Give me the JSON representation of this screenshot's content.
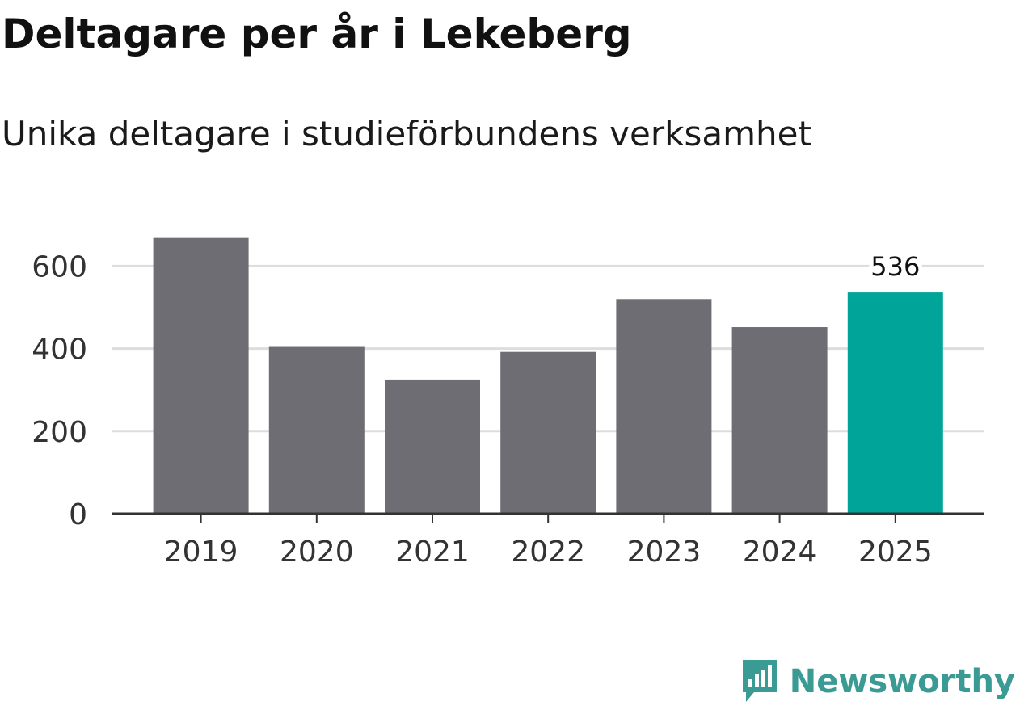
{
  "header": {
    "title": "Deltagare per år i Lekeberg",
    "subtitle": "Unika deltagare i studieförbundens verksamhet"
  },
  "brand": {
    "name": "Newsworthy",
    "icon": "newsworthy-logo-icon",
    "color": "#3a9a94"
  },
  "colors": {
    "bar_default": "#6e6d73",
    "bar_highlight": "#00a499",
    "gridline": "#dddddd",
    "axis": "#333333",
    "tick_text": "#333333"
  },
  "chart_data": {
    "type": "bar",
    "title": "Deltagare per år i Lekeberg",
    "subtitle": "Unika deltagare i studieförbundens verksamhet",
    "xlabel": "",
    "ylabel": "",
    "categories": [
      "2019",
      "2020",
      "2021",
      "2022",
      "2023",
      "2024",
      "2025"
    ],
    "values": [
      668,
      406,
      325,
      392,
      520,
      452,
      536
    ],
    "highlight_index": 6,
    "data_labels": [
      {
        "index": 6,
        "text": "536"
      }
    ],
    "y_ticks": [
      0,
      200,
      400,
      600
    ],
    "ylim": [
      0,
      680
    ],
    "grid": true
  }
}
